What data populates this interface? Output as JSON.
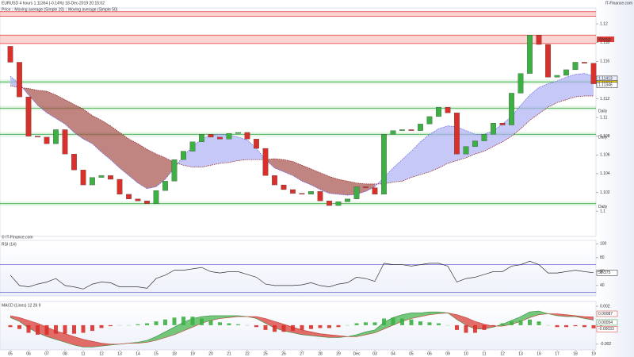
{
  "header": {
    "brand": "IT-Finance.com",
    "copyright": "© IT-Finance.com"
  },
  "chart_data": [
    {
      "type": "candlestick",
      "title": "EURUSD  4 hours  1.11364 (-0.14%)  18-Dec-2019 20:15:02",
      "categories": [
        "05",
        null,
        "06",
        null,
        "07",
        null,
        "08",
        null,
        "11",
        null,
        "12",
        null,
        "13",
        null,
        "14",
        null,
        "15",
        null,
        "18",
        null,
        "19",
        null,
        "20",
        null,
        "21",
        null,
        "22",
        null,
        "25",
        null,
        "26",
        null,
        "27",
        null,
        "28",
        null,
        "29",
        null,
        "Dec",
        null,
        "03",
        null,
        "04",
        null,
        "05",
        null,
        "06",
        null,
        "09",
        null,
        "10",
        null,
        "11",
        null,
        "12",
        null,
        "13",
        null,
        "16",
        null,
        "17",
        null,
        "18",
        null,
        "19"
      ],
      "ylim": [
        1.0973,
        1.1217
      ],
      "yticks": [
        1.12,
        1.118,
        1.116,
        1.112,
        1.11,
        1.108,
        1.106,
        1.104,
        1.102,
        1.1
      ],
      "up_color": "#3cb043",
      "down_color": "#d9302b",
      "cloud_colors": [
        "#aeb0f3",
        "#a5504b"
      ],
      "series": [
        {
          "name": "Price",
          "open": [
            1.1176,
            1.1159,
            1.1122,
            1.108,
            1.1079,
            1.1072,
            1.1087,
            1.1061,
            1.1044,
            1.1028,
            1.1036,
            1.1038,
            1.1034,
            1.1018,
            1.1013,
            1.1011,
            1.1008,
            1.1022,
            1.1032,
            1.1055,
            1.1064,
            1.1074,
            1.1082,
            1.1079,
            1.1077,
            1.1083,
            1.1084,
            1.1077,
            1.1067,
            1.1038,
            1.1028,
            1.1023,
            1.1019,
            1.1018,
            1.1021,
            1.1011,
            1.1006,
            1.101,
            1.1013,
            1.1026,
            1.1025,
            1.1018,
            1.1082,
            1.1086,
            1.1087,
            1.1086,
            1.1093,
            1.1101,
            1.1111,
            1.1105,
            1.1061,
            1.1069,
            1.1075,
            1.1082,
            1.1094,
            1.1092,
            1.1126,
            1.1147,
            1.1188,
            1.1178,
            1.1143,
            1.1145,
            1.1151,
            1.1159,
            1.1158
          ],
          "close": [
            1.1159,
            1.1122,
            1.108,
            1.1079,
            1.1072,
            1.1087,
            1.1061,
            1.1044,
            1.1028,
            1.1036,
            1.1038,
            1.1034,
            1.1018,
            1.1013,
            1.1011,
            1.1008,
            1.1022,
            1.1032,
            1.1055,
            1.1064,
            1.1074,
            1.1082,
            1.1079,
            1.1077,
            1.1083,
            1.1084,
            1.1077,
            1.1067,
            1.1038,
            1.1028,
            1.1023,
            1.1019,
            1.1018,
            1.1021,
            1.1011,
            1.1006,
            1.101,
            1.1013,
            1.1026,
            1.1025,
            1.1018,
            1.1082,
            1.1086,
            1.1087,
            1.1086,
            1.1093,
            1.1101,
            1.1111,
            1.1105,
            1.1061,
            1.1069,
            1.1075,
            1.1082,
            1.1094,
            1.1092,
            1.1126,
            1.1147,
            1.1188,
            1.1178,
            1.1143,
            1.1145,
            1.1151,
            1.1159,
            1.1158,
            1.1136
          ]
        },
        {
          "name": "Moving average (Simple 20)",
          "color": "#5b5bea",
          "values": [
            1.1144,
            1.1136,
            1.1124,
            1.1113,
            1.1105,
            1.1099,
            1.1093,
            1.1084,
            1.1077,
            1.1072,
            1.1063,
            1.1055,
            1.1046,
            1.1038,
            1.103,
            1.1024,
            1.1026,
            1.1034,
            1.1046,
            1.1059,
            1.1069,
            1.1077,
            1.1081,
            1.1082,
            1.1081,
            1.1079,
            1.1076,
            1.1067,
            1.1055,
            1.1046,
            1.1042,
            1.1038,
            1.1032,
            1.1028,
            1.1023,
            1.1019,
            1.1018,
            1.1017,
            1.1018,
            1.1021,
            1.1026,
            1.1036,
            1.1046,
            1.1055,
            1.1064,
            1.1074,
            1.1082,
            1.1088,
            1.1091,
            1.109,
            1.1086,
            1.1082,
            1.1082,
            1.1086,
            1.1093,
            1.1101,
            1.1113,
            1.1124,
            1.1132,
            1.1136,
            1.1139,
            1.1143,
            1.1146,
            1.1147,
            1.1144
          ]
        },
        {
          "name": "Moving average (Simple 50)",
          "color": "#8b1a1a",
          "values": [
            1.1134,
            1.1132,
            1.1131,
            1.1129,
            1.1128,
            1.1124,
            1.1119,
            1.1114,
            1.1109,
            1.1102,
            1.1097,
            1.1091,
            1.1084,
            1.1077,
            1.1072,
            1.1066,
            1.1061,
            1.1057,
            1.1052,
            1.1049,
            1.1047,
            1.1047,
            1.1049,
            1.1051,
            1.1052,
            1.1054,
            1.1055,
            1.1055,
            1.1055,
            1.1056,
            1.1055,
            1.1053,
            1.1049,
            1.1045,
            1.1041,
            1.1037,
            1.1034,
            1.1032,
            1.103,
            1.1029,
            1.1029,
            1.1029,
            1.1031,
            1.1032,
            1.1036,
            1.1039,
            1.1042,
            1.1046,
            1.1051,
            1.1054,
            1.1057,
            1.1061,
            1.1064,
            1.1069,
            1.1074,
            1.108,
            1.1088,
            1.1097,
            1.1104,
            1.1111,
            1.1116,
            1.1119,
            1.1122,
            1.1123,
            1.1123
          ]
        }
      ],
      "zones": [
        {
          "low": 1.1208,
          "high": 1.1213,
          "color": "#e53935"
        },
        {
          "low": 1.1179,
          "high": 1.1188,
          "color": "#e53935",
          "label": "Weekly"
        }
      ],
      "levels": [
        {
          "value": 1.1138,
          "color": "#3cb043",
          "label": "Daily"
        },
        {
          "value": 1.111,
          "color": "#3cb043",
          "label": "Daily"
        },
        {
          "value": 1.1082,
          "color": "#3cb043",
          "label": "Daily"
        },
        {
          "value": 1.1008,
          "color": "#3cb043",
          "label": "Daily"
        }
      ],
      "markers": [
        {
          "value": 1.11413,
          "color": "#e8ecfb"
        },
        {
          "value": 1.11364,
          "color": "#f5d000"
        },
        {
          "value": 1.11346,
          "color": "#ffffff"
        }
      ]
    },
    {
      "type": "line",
      "title": "RSI (14)",
      "ylim": [
        25,
        105
      ],
      "yticks": [
        40,
        60,
        80,
        100
      ],
      "levels": [
        70,
        30
      ],
      "level_color": "#6b6bd0",
      "series": [
        {
          "color": "#333333",
          "values": [
            55,
            40,
            38,
            42,
            45,
            50,
            40,
            38,
            35,
            42,
            45,
            44,
            38,
            38,
            38,
            36,
            50,
            55,
            62,
            62,
            64,
            66,
            60,
            58,
            60,
            60,
            56,
            52,
            42,
            40,
            40,
            40,
            41,
            44,
            40,
            38,
            42,
            44,
            52,
            50,
            46,
            72,
            70,
            70,
            68,
            70,
            72,
            72,
            68,
            45,
            50,
            52,
            56,
            60,
            60,
            68,
            70,
            75,
            70,
            58,
            58,
            60,
            62,
            60,
            58.375
          ]
        }
      ]
    },
    {
      "type": "macd",
      "title": "MACD (Lines) 12 26 9",
      "ylim": [
        -0.0026,
        0.0025
      ],
      "yticks": [
        0.002,
        0,
        -0.002
      ],
      "up_color": "#3cb043",
      "down_color": "#d9302b",
      "series": [
        {
          "color": "#2f8f3a",
          "values": [
            0.0008,
            0.0004,
            -0.0003,
            -0.0008,
            -0.0012,
            -0.0015,
            -0.0018,
            -0.0021,
            -0.0023,
            -0.0023,
            -0.0022,
            -0.0021,
            -0.002,
            -0.0019,
            -0.0018,
            -0.0016,
            -0.0012,
            -0.0007,
            -0.0002,
            0.0003,
            0.0007,
            0.0009,
            0.001,
            0.001,
            0.001,
            0.001,
            0.0009,
            0.0007,
            0.0002,
            -0.0003,
            -0.0006,
            -0.0008,
            -0.001,
            -0.0011,
            -0.0012,
            -0.0013,
            -0.0013,
            -0.0012,
            -0.001,
            -0.0007,
            -0.0005,
            0.0003,
            0.0008,
            0.0011,
            0.0013,
            0.0013,
            0.0014,
            0.0014,
            0.0013,
            0.0006,
            0,
            -0.0004,
            -0.0004,
            -0.0002,
            0.0001,
            0.0005,
            0.0009,
            0.0014,
            0.0015,
            0.0012,
            0.001,
            0.0009,
            0.0009,
            0.0007,
            0.00054
          ]
        },
        {
          "color": "#c0392b",
          "values": [
            0.001,
            0.0008,
            0.0005,
            0.0002,
            -0.0002,
            -0.0006,
            -0.0009,
            -0.0012,
            -0.0015,
            -0.0017,
            -0.0019,
            -0.002,
            -0.002,
            -0.0019,
            -0.0019,
            -0.0018,
            -0.0016,
            -0.0013,
            -0.001,
            -0.0006,
            -0.0002,
            0.0002,
            0.0005,
            0.0007,
            0.0008,
            0.0009,
            0.0009,
            0.0009,
            0.0007,
            0.0004,
            0.0001,
            -0.0002,
            -0.0005,
            -0.0007,
            -0.0009,
            -0.001,
            -0.0011,
            -0.0012,
            -0.0012,
            -0.001,
            -0.0008,
            -0.0004,
            0,
            0.0004,
            0.0007,
            0.0009,
            0.0011,
            0.0012,
            0.0013,
            0.0011,
            0.0008,
            0.0004,
            0.0001,
            -0.0001,
            -0.0001,
            0.0001,
            0.0004,
            0.0008,
            0.0011,
            0.0012,
            0.0012,
            0.0011,
            0.001,
            0.0009,
            0.00087
          ]
        },
        {
          "color": "#d9302b",
          "values": [
            -0.0002,
            -0.0004,
            -0.0008,
            -0.001,
            -0.001,
            -0.0009,
            -0.0009,
            -0.0009,
            -0.0008,
            -0.0006,
            -0.0003,
            -0.0001,
            0,
            0,
            0.0001,
            0.0002,
            0.0004,
            0.0006,
            0.0008,
            0.0009,
            0.0009,
            0.0007,
            0.0005,
            0.0003,
            0.0002,
            0.0001,
            0,
            -0.0002,
            -0.0005,
            -0.0007,
            -0.0007,
            -0.0006,
            -0.0005,
            -0.0004,
            -0.0003,
            -0.0003,
            -0.0002,
            0,
            0.0002,
            0.0003,
            0.0003,
            0.0007,
            0.0008,
            0.0007,
            0.0006,
            0.0004,
            0.0003,
            0.0002,
            0,
            -0.0005,
            -0.0008,
            -0.0008,
            -0.0005,
            -0.0001,
            0.0002,
            0.0004,
            0.0005,
            0.0006,
            0.0004,
            0,
            -0.0002,
            -0.0002,
            -0.0001,
            -0.0002,
            -0.00033
          ]
        }
      ]
    }
  ]
}
